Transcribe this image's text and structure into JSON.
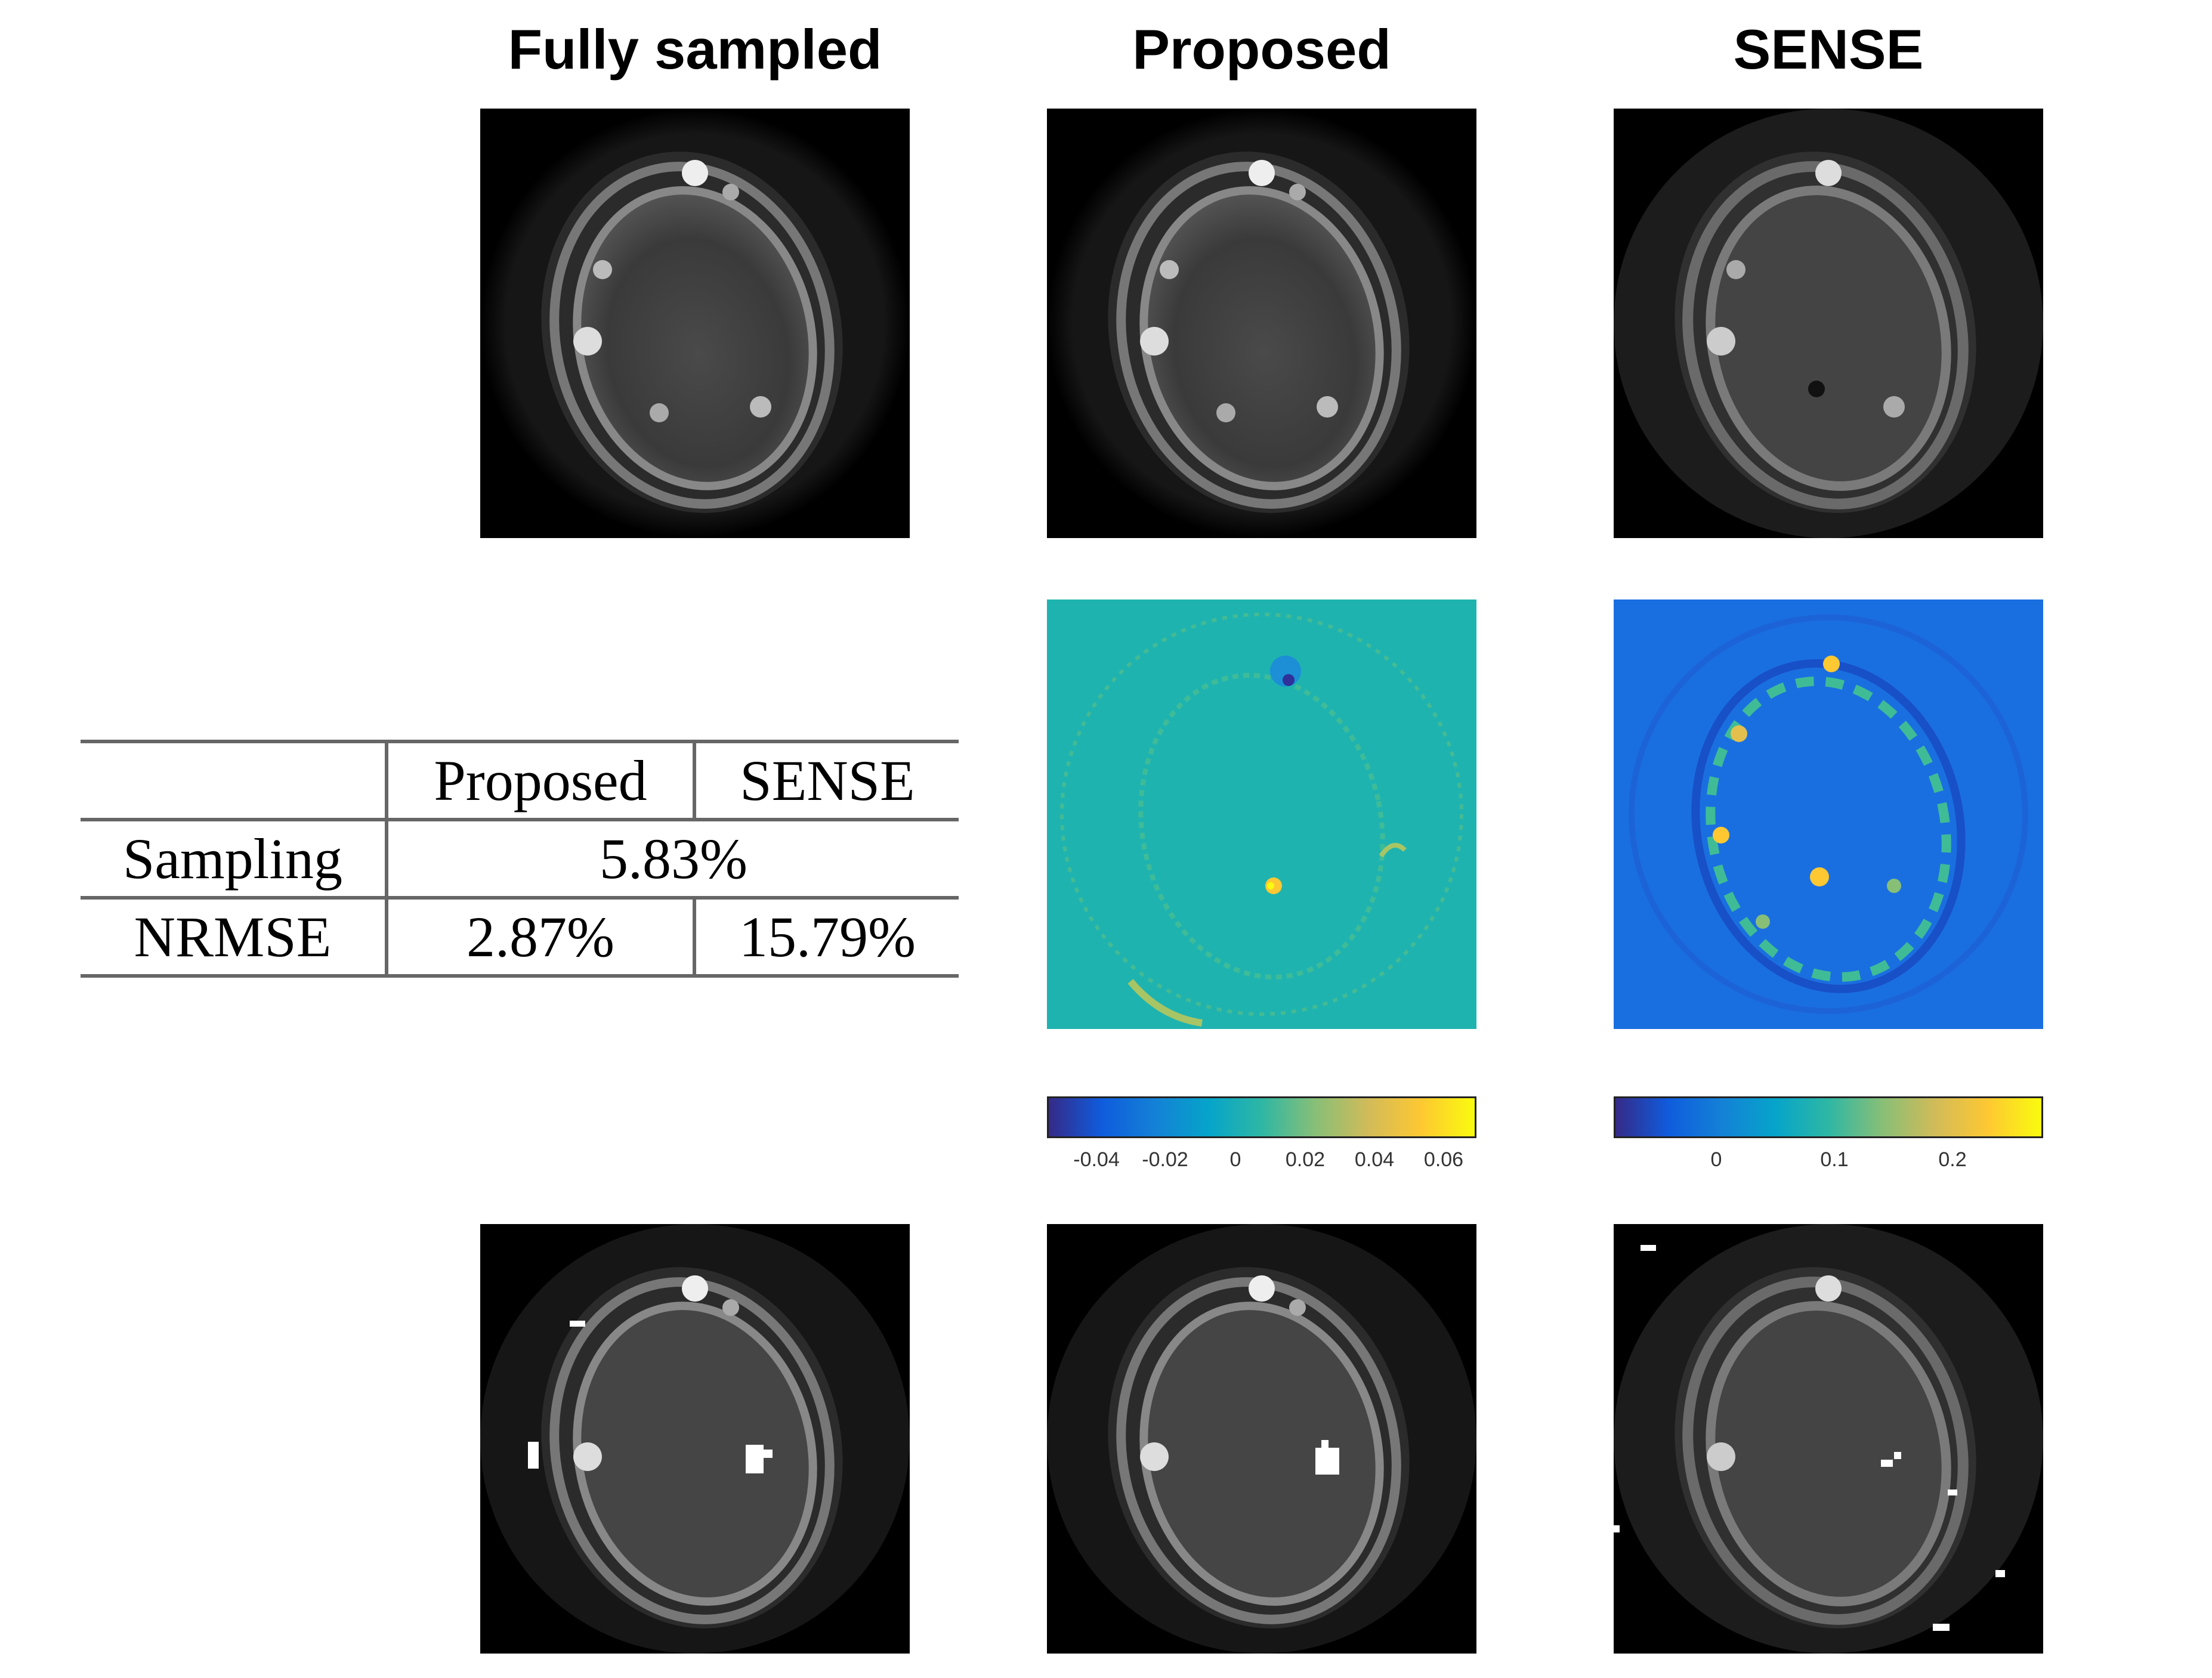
{
  "columns": {
    "fully_sampled": "Fully sampled",
    "proposed": "Proposed",
    "sense": "SENSE"
  },
  "table": {
    "header": [
      "",
      "Proposed",
      "SENSE"
    ],
    "rows": [
      {
        "label": "Sampling",
        "merged_value": "5.83%"
      },
      {
        "label": "NRMSE",
        "proposed": "2.87%",
        "sense": "15.79%"
      }
    ]
  },
  "colorbars": {
    "proposed": {
      "ticks": [
        "-0.04",
        "-0.02",
        "0",
        "0.02",
        "0.04",
        "0.06"
      ],
      "colormap": "parula"
    },
    "sense": {
      "ticks": [
        "0",
        "0.1",
        "0.2"
      ],
      "colormap": "parula"
    }
  },
  "colors": {
    "background": "#ffffff",
    "image_background": "#000000",
    "error_map_background_proposed": "#1fb3b0",
    "error_map_background_sense": "#1a6fe0",
    "text": "#000000"
  }
}
